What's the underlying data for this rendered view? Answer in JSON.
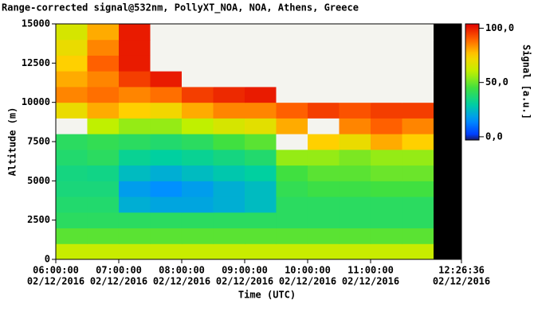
{
  "chart_data": {
    "type": "heatmap",
    "title": "Range-corrected signal@532nm, PollyXT_NOA, NOA, Athens, Greece",
    "xlabel": "Time (UTC)",
    "ylabel": "Altitude (m)",
    "colorbar_label": "Signal [a.u.]",
    "xlim": [
      6,
      12.4433
    ],
    "ylim": [
      0,
      15000
    ],
    "xticks": [
      {
        "value": 6,
        "label": "06:00:00"
      },
      {
        "value": 7,
        "label": "07:00:00"
      },
      {
        "value": 8,
        "label": "08:00:00"
      },
      {
        "value": 9,
        "label": "09:00:00"
      },
      {
        "value": 10,
        "label": "10:00:00"
      },
      {
        "value": 11,
        "label": "11:00:00"
      },
      {
        "value": 12.4433,
        "label": "12:26:36"
      }
    ],
    "xtick_sublabels": [
      "02/12/2016",
      "02/12/2016",
      "02/12/2016",
      "02/12/2016",
      "02/12/2016",
      "02/12/2016",
      "02/12/2016"
    ],
    "yticks": [
      0,
      2500,
      5000,
      7500,
      10000,
      12500,
      15000
    ],
    "clim": [
      -3,
      104
    ],
    "cticks": [
      {
        "value": 0,
        "label": "0,0"
      },
      {
        "value": 50,
        "label": "50,0"
      },
      {
        "value": 100,
        "label": "100,0"
      }
    ],
    "xbins": [
      6,
      6.5,
      7,
      7.5,
      8,
      8.5,
      9,
      9.5,
      10,
      10.5,
      11,
      11.5,
      12,
      12.5
    ],
    "ybins": [
      0,
      1000,
      2000,
      3000,
      4000,
      5000,
      6000,
      7000,
      8000,
      9000,
      10000,
      11000,
      12000,
      13000,
      14000,
      15000
    ],
    "z": [
      [
        62,
        62,
        62,
        62,
        62,
        62,
        62,
        62,
        62,
        62,
        62,
        62,
        null
      ],
      [
        48,
        48,
        48,
        48,
        48,
        48,
        48,
        48,
        48,
        48,
        48,
        48,
        null
      ],
      [
        40,
        40,
        40,
        40,
        40,
        40,
        40,
        40,
        40,
        40,
        40,
        40,
        null
      ],
      [
        38,
        38,
        22,
        20,
        20,
        22,
        25,
        40,
        40,
        40,
        40,
        40,
        null
      ],
      [
        36,
        36,
        18,
        15,
        18,
        22,
        25,
        42,
        44,
        44,
        45,
        45,
        null
      ],
      [
        35,
        34,
        25,
        22,
        25,
        28,
        30,
        45,
        48,
        48,
        50,
        50,
        null
      ],
      [
        38,
        40,
        32,
        30,
        32,
        35,
        38,
        55,
        55,
        52,
        55,
        55,
        null
      ],
      [
        40,
        42,
        40,
        38,
        40,
        45,
        48,
        110,
        75,
        70,
        80,
        75,
        null
      ],
      [
        110,
        60,
        55,
        55,
        60,
        65,
        68,
        80,
        110,
        85,
        90,
        85,
        null
      ],
      [
        70,
        80,
        75,
        72,
        80,
        85,
        85,
        90,
        95,
        92,
        95,
        95,
        null
      ],
      [
        85,
        88,
        85,
        88,
        95,
        98,
        100,
        105,
        110,
        105,
        108,
        105,
        null
      ],
      [
        80,
        85,
        95,
        100,
        105,
        110,
        110,
        110,
        110,
        110,
        110,
        110,
        null
      ],
      [
        75,
        90,
        100,
        105,
        110,
        110,
        110,
        110,
        110,
        105,
        108,
        110,
        null
      ],
      [
        70,
        85,
        100,
        110,
        110,
        110,
        110,
        110,
        110,
        110,
        110,
        110,
        null
      ],
      [
        65,
        80,
        100,
        110,
        110,
        110,
        110,
        110,
        110,
        110,
        110,
        110,
        null
      ]
    ]
  }
}
